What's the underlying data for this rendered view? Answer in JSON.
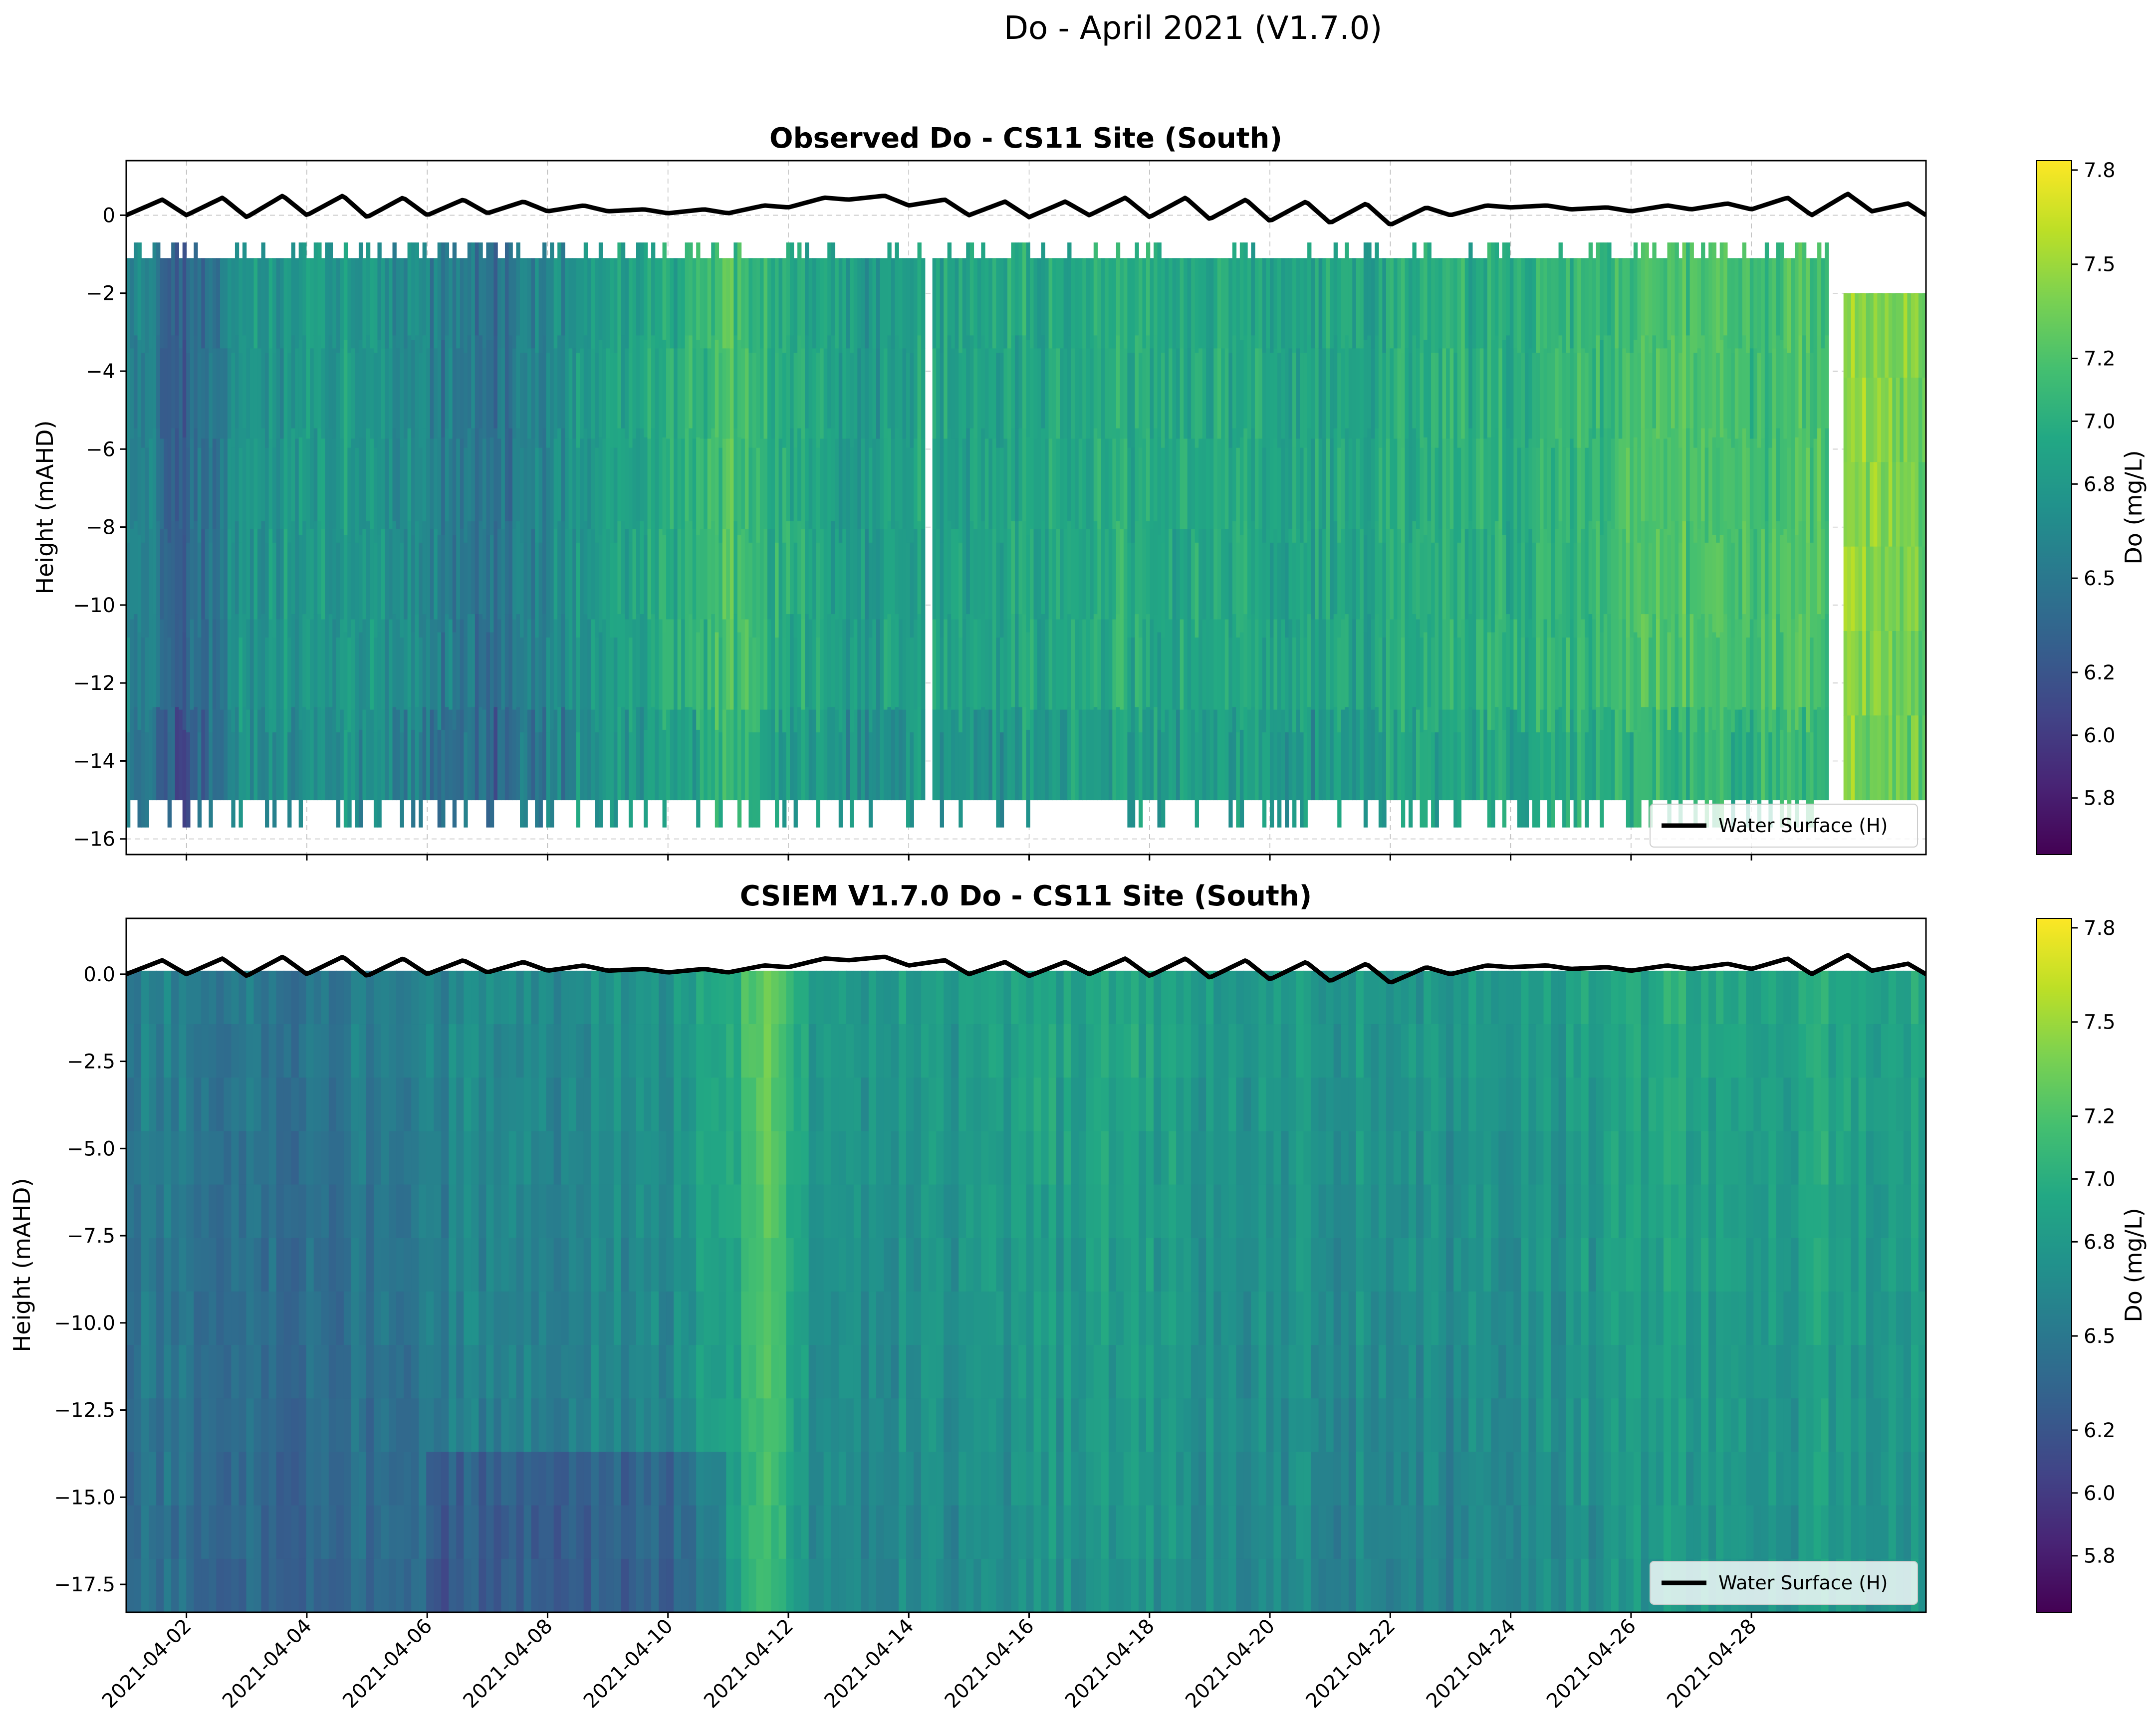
{
  "figure_title": "Do - April 2021 (V1.7.0)",
  "chart_data": [
    {
      "type": "heatmap",
      "title": "Observed Do - CS11 Site (South)",
      "xlabel": "",
      "ylabel": "Height (mAHD)",
      "x_range": [
        "2021-03-31T00:00",
        "2021-04-29T22:00"
      ],
      "ylim": [
        -16.4,
        1.4
      ],
      "yticks": [
        0,
        -2,
        -4,
        -6,
        -8,
        -10,
        -12,
        -14,
        -16
      ],
      "grid": true,
      "colorbar": {
        "label": "Do (mg/L)",
        "range": [
          5.62,
          7.83
        ],
        "ticks": [
          5.8,
          6.0,
          6.2,
          6.5,
          6.8,
          7.0,
          7.2,
          7.5,
          7.8
        ]
      },
      "legend": {
        "label": "Water Surface (H)",
        "position": "lower right"
      },
      "data_gaps_days": [
        [
          13.25,
          13.4
        ],
        [
          28.25,
          28.55
        ]
      ],
      "profile_top_mAHD": -1.1,
      "profile_bottom_mAHD": -15.0,
      "do_trend": {
        "days": [
          0,
          1,
          2,
          4,
          6,
          8,
          9.5,
          10,
          12,
          14,
          16,
          18,
          20,
          22,
          24,
          25.5,
          27,
          28.25,
          28.6,
          29.9
        ],
        "values": [
          6.7,
          6.3,
          6.8,
          6.8,
          6.4,
          6.9,
          7.0,
          7.2,
          6.8,
          6.9,
          7.0,
          6.95,
          6.9,
          7.0,
          7.05,
          7.25,
          7.15,
          7.2,
          7.45,
          7.35
        ]
      }
    },
    {
      "type": "heatmap",
      "title": "CSIEM V1.7.0 Do - CS11 Site (South)",
      "xlabel": "",
      "ylabel": "Height (mAHD)",
      "x_range": [
        "2021-03-31T00:00",
        "2021-04-29T22:00"
      ],
      "ylim": [
        -18.3,
        1.6
      ],
      "yticks": [
        0.0,
        -2.5,
        -5.0,
        -7.5,
        -10.0,
        -12.5,
        -15.0,
        -17.5
      ],
      "ytick_labels": [
        "0.0",
        "−2.5",
        "−5.0",
        "−7.5",
        "−10.0",
        "−12.5",
        "−15.0",
        "−17.5"
      ],
      "grid": false,
      "colorbar": {
        "label": "Do (mg/L)",
        "range": [
          5.62,
          7.83
        ],
        "ticks": [
          5.8,
          6.0,
          6.2,
          6.5,
          6.8,
          7.0,
          7.2,
          7.5,
          7.8
        ]
      },
      "legend": {
        "label": "Water Surface (H)",
        "position": "lower right"
      },
      "do_trend": {
        "days": [
          0,
          2,
          4,
          6,
          8,
          9,
          10,
          10.8,
          11.2,
          12,
          14,
          16,
          18,
          20,
          22,
          24,
          26,
          28,
          29.9
        ],
        "values": [
          6.6,
          6.5,
          6.55,
          6.7,
          6.7,
          6.75,
          7.0,
          7.35,
          6.9,
          6.8,
          6.85,
          6.9,
          6.85,
          6.8,
          6.75,
          6.85,
          6.95,
          6.95,
          6.9
        ]
      }
    }
  ],
  "x_tick_labels": [
    "2021-04-02",
    "2021-04-04",
    "2021-04-06",
    "2021-04-08",
    "2021-04-10",
    "2021-04-12",
    "2021-04-14",
    "2021-04-16",
    "2021-04-18",
    "2021-04-20",
    "2021-04-22",
    "2021-04-24",
    "2021-04-26",
    "2021-04-28"
  ],
  "x_tick_days": [
    1,
    3,
    5,
    7,
    9,
    11,
    13,
    15,
    17,
    19,
    21,
    23,
    25,
    27
  ],
  "water_surface": {
    "label": "Water Surface (H)",
    "days": [
      0,
      0.6,
      1.0,
      1.6,
      2.0,
      2.6,
      3.0,
      3.6,
      4.0,
      4.6,
      5.0,
      5.6,
      6.0,
      6.6,
      7.0,
      7.6,
      8.0,
      8.6,
      9.0,
      9.6,
      10.0,
      10.6,
      11.0,
      11.6,
      12.0,
      12.6,
      13.0,
      13.6,
      14.0,
      14.6,
      15.0,
      15.6,
      16.0,
      16.6,
      17.0,
      17.6,
      18.0,
      18.6,
      19.0,
      19.6,
      20.0,
      20.6,
      21.0,
      21.6,
      22.0,
      22.6,
      23.0,
      23.6,
      24.0,
      24.6,
      25.0,
      25.6,
      26.0,
      26.6,
      27.0,
      27.6,
      28.0,
      28.6,
      29.0,
      29.6,
      29.9
    ],
    "height_mAHD": [
      0.0,
      0.4,
      0.0,
      0.45,
      -0.05,
      0.5,
      0.0,
      0.5,
      -0.05,
      0.45,
      0.0,
      0.4,
      0.05,
      0.35,
      0.1,
      0.25,
      0.1,
      0.15,
      0.05,
      0.15,
      0.05,
      0.25,
      0.2,
      0.45,
      0.4,
      0.5,
      0.25,
      0.4,
      0.0,
      0.35,
      -0.05,
      0.35,
      0.0,
      0.45,
      -0.05,
      0.45,
      -0.1,
      0.4,
      -0.15,
      0.35,
      -0.2,
      0.3,
      -0.25,
      0.2,
      0.0,
      0.25,
      0.2,
      0.25,
      0.15,
      0.2,
      0.1,
      0.25,
      0.15,
      0.3,
      0.15,
      0.45,
      0.0,
      0.55,
      0.1,
      0.3,
      0.0
    ]
  }
}
